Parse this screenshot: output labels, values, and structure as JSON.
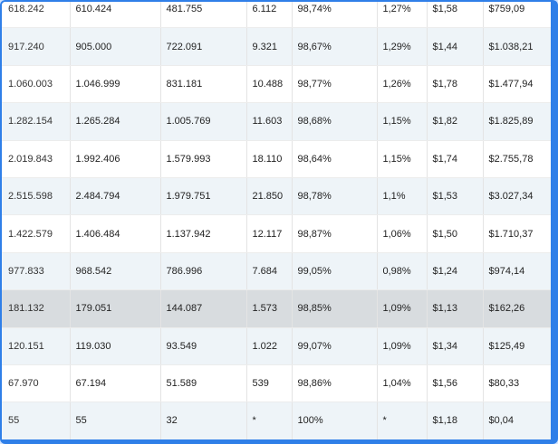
{
  "table": {
    "rows": [
      [
        "618.242",
        "610.424",
        "481.755",
        "6.112",
        "98,74%",
        "1,27%",
        "$1,58",
        "$759,09"
      ],
      [
        "917.240",
        "905.000",
        "722.091",
        "9.321",
        "98,67%",
        "1,29%",
        "$1,44",
        "$1.038,21"
      ],
      [
        "1.060.003",
        "1.046.999",
        "831.181",
        "10.488",
        "98,77%",
        "1,26%",
        "$1,78",
        "$1.477,94"
      ],
      [
        "1.282.154",
        "1.265.284",
        "1.005.769",
        "11.603",
        "98,68%",
        "1,15%",
        "$1,82",
        "$1.825,89"
      ],
      [
        "2.019.843",
        "1.992.406",
        "1.579.993",
        "18.110",
        "98,64%",
        "1,15%",
        "$1,74",
        "$2.755,78"
      ],
      [
        "2.515.598",
        "2.484.794",
        "1.979.751",
        "21.850",
        "98,78%",
        "1,1%",
        "$1,53",
        "$3.027,34"
      ],
      [
        "1.422.579",
        "1.406.484",
        "1.137.942",
        "12.117",
        "98,87%",
        "1,06%",
        "$1,50",
        "$1.710,37"
      ],
      [
        "977.833",
        "968.542",
        "786.996",
        "7.684",
        "99,05%",
        "0,98%",
        "$1,24",
        "$974,14"
      ],
      [
        "181.132",
        "179.051",
        "144.087",
        "1.573",
        "98,85%",
        "1,09%",
        "$1,13",
        "$162,26"
      ],
      [
        "120.151",
        "119.030",
        "93.549",
        "1.022",
        "99,07%",
        "1,09%",
        "$1,34",
        "$125,49"
      ],
      [
        "67.970",
        "67.194",
        "51.589",
        "539",
        "98,86%",
        "1,04%",
        "$1,56",
        "$80,33"
      ],
      [
        "55",
        "55",
        "32",
        "*",
        "100%",
        "*",
        "$1,18",
        "$0,04"
      ]
    ],
    "highlighted_row_index": 8
  },
  "colors": {
    "frame_border": "#2f7fe8",
    "stripe": "#eef4f8",
    "highlight": "#d8dcdf"
  }
}
